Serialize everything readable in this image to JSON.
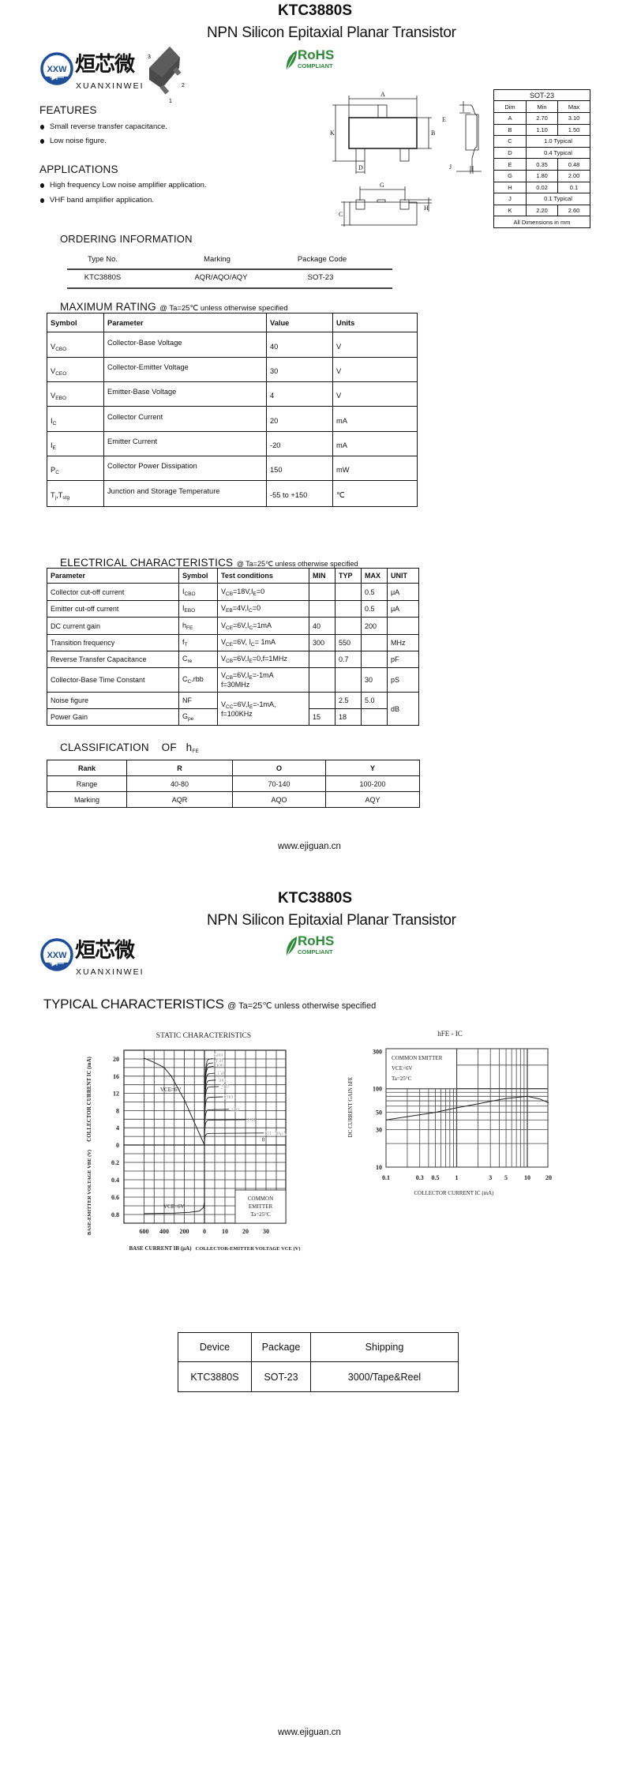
{
  "header": {
    "part": "KTC3880S",
    "subtitle": "NPN Silicon Epitaxial Planar Transistor",
    "rohs": "RoHS",
    "rohs_sub": "COMPLIANT",
    "logo_cn": "烜芯微",
    "logo_en": "XUANXINWEI",
    "logo_mark": "XXW",
    "brand_blue": "#1f4e9a",
    "rohs_green": "#2e8b3a"
  },
  "package_image": {
    "pins": [
      "3",
      "2",
      "1"
    ]
  },
  "features": {
    "title": "FEATURES",
    "items": [
      "Small reverse transfer capacitance.",
      "Low noise figure."
    ]
  },
  "applications": {
    "title": "APPLICATIONS",
    "items": [
      "High frequency Low noise amplifier application.",
      "VHF band amplifier application."
    ]
  },
  "outline": {
    "A": "A",
    "B": "B",
    "C": "C",
    "D": "D",
    "E": "E",
    "G": "G",
    "H": "H",
    "J": "J",
    "K": "K"
  },
  "dims": {
    "title": "SOT-23",
    "headers": [
      "Dim",
      "Min",
      "Max"
    ],
    "rows": [
      [
        "A",
        "2.70",
        "3.10"
      ],
      [
        "B",
        "1.10",
        "1.50"
      ],
      [
        "C",
        "1.0 Typical"
      ],
      [
        "D",
        "0.4 Typical"
      ],
      [
        "E",
        "0.35",
        "0.48"
      ],
      [
        "G",
        "1.80",
        "2.00"
      ],
      [
        "H",
        "0.02",
        "0.1"
      ],
      [
        "J",
        "0.1 Typical"
      ],
      [
        "K",
        "2.20",
        "2.60"
      ]
    ],
    "footer": "All Dimensions in mm"
  },
  "ordering": {
    "title": "ORDERING INFORMATION",
    "headers": [
      "Type No.",
      "Marking",
      "Package Code"
    ],
    "row": [
      "KTC3880S",
      "AQR/AQO/AQY",
      "SOT-23"
    ]
  },
  "max_rating": {
    "title": "MAXIMUM RATING",
    "cond": "@ Ta=25℃ unless otherwise specified",
    "headers": [
      "Symbol",
      "Parameter",
      "Value",
      "Units"
    ],
    "rows": [
      {
        "sym": [
          {
            "t": "V"
          },
          {
            "s": "CBO"
          }
        ],
        "param": "Collector-Base Voltage",
        "value": "40",
        "unit": "V"
      },
      {
        "sym": [
          {
            "t": "V"
          },
          {
            "s": "CEO"
          }
        ],
        "param": "Collector-Emitter Voltage",
        "value": "30",
        "unit": "V"
      },
      {
        "sym": [
          {
            "t": "V"
          },
          {
            "s": "EBO"
          }
        ],
        "param": "Emitter-Base Voltage",
        "value": "4",
        "unit": "V"
      },
      {
        "sym": [
          {
            "t": "I"
          },
          {
            "s": "C"
          }
        ],
        "param": "Collector Current",
        "value": "20",
        "unit": "mA"
      },
      {
        "sym": [
          {
            "t": "I"
          },
          {
            "s": "E"
          }
        ],
        "param": "Emitter Current",
        "value": "-20",
        "unit": "mA"
      },
      {
        "sym": [
          {
            "t": "P"
          },
          {
            "s": "C"
          }
        ],
        "param": "Collector Power Dissipation",
        "value": "150",
        "unit": "mW"
      },
      {
        "sym": [
          {
            "t": "T"
          },
          {
            "s": "j"
          },
          {
            "t": ",T"
          },
          {
            "s": "stg"
          }
        ],
        "param": "Junction and Storage Temperature",
        "value": "-55 to +150",
        "unit": "℃"
      }
    ]
  },
  "electrical": {
    "title": "ELECTRICAL CHARACTERISTICS",
    "cond": "@ Ta=25℃ unless otherwise specified",
    "headers": [
      "Parameter",
      "Symbol",
      "Test conditions",
      "MIN",
      "TYP",
      "MAX",
      "UNIT"
    ],
    "rows": [
      {
        "param": "Collector cut-off current",
        "sym": [
          {
            "t": "I"
          },
          {
            "s": "CBO"
          }
        ],
        "cond": [
          {
            "t": "V"
          },
          {
            "s": "CB"
          },
          {
            "t": "=18V,I"
          },
          {
            "s": "E"
          },
          {
            "t": "=0"
          }
        ],
        "min": "",
        "typ": "",
        "max": "0.5",
        "unit": "μA"
      },
      {
        "param": "Emitter cut-off current",
        "sym": [
          {
            "t": "I"
          },
          {
            "s": "EBO"
          }
        ],
        "cond": [
          {
            "t": "V"
          },
          {
            "s": "EB"
          },
          {
            "t": "=4V,I"
          },
          {
            "s": "C"
          },
          {
            "t": "=0"
          }
        ],
        "min": "",
        "typ": "",
        "max": "0.5",
        "unit": "μA"
      },
      {
        "param": "DC current gain",
        "sym": [
          {
            "t": "h"
          },
          {
            "s": "FE"
          }
        ],
        "cond": [
          {
            "t": "V"
          },
          {
            "s": "CE"
          },
          {
            "t": "=6V,I"
          },
          {
            "s": "C"
          },
          {
            "t": "=1mA"
          }
        ],
        "min": "40",
        "typ": "",
        "max": "200",
        "unit": ""
      },
      {
        "param": "Transition frequency",
        "sym": [
          {
            "t": "f"
          },
          {
            "s": "T"
          }
        ],
        "cond": [
          {
            "t": "V"
          },
          {
            "s": "CE"
          },
          {
            "t": "=6V, I"
          },
          {
            "s": "C"
          },
          {
            "t": "= 1mA"
          }
        ],
        "min": "300",
        "typ": "550",
        "max": "",
        "unit": "MHz"
      },
      {
        "param": "Reverse Transfer Capacitance",
        "sym": [
          {
            "t": "C"
          },
          {
            "s": "re"
          }
        ],
        "cond": [
          {
            "t": "V"
          },
          {
            "s": "CB"
          },
          {
            "t": "=6V,I"
          },
          {
            "s": "E"
          },
          {
            "t": "=0,f=1MHz"
          }
        ],
        "min": "",
        "typ": "0.7",
        "max": "",
        "unit": "pF"
      },
      {
        "param": "Collector-Base Time Constant",
        "sym": [
          {
            "t": "C"
          },
          {
            "s": "C"
          },
          {
            "t": ".rbb"
          }
        ],
        "cond": [
          {
            "t": "V"
          },
          {
            "s": "CB"
          },
          {
            "t": "=6V,I"
          },
          {
            "s": "E"
          },
          {
            "t": "=-1mA"
          },
          {
            "br": true
          },
          {
            "t": "f=30MHz"
          }
        ],
        "min": "",
        "typ": "",
        "max": "30",
        "unit": "pS"
      },
      {
        "param": "Noise figure",
        "sym": [
          {
            "t": "NF"
          }
        ],
        "cond": [
          {
            "t": "V"
          },
          {
            "s": "CC"
          },
          {
            "t": "=6V,I"
          },
          {
            "s": "E"
          },
          {
            "t": "=-1mA,"
          },
          {
            "br": true
          },
          {
            "t": "f=100KHz"
          }
        ],
        "min": "",
        "typ": "2.5",
        "max": "5.0",
        "unit": "dB"
      },
      {
        "param": "Power Gain",
        "sym": [
          {
            "t": "G"
          },
          {
            "s": "pe"
          }
        ],
        "min": "15",
        "typ": "18",
        "max": ""
      }
    ]
  },
  "classification": {
    "title": "CLASSIFICATION    OF",
    "sym": [
      {
        "t": "h"
      },
      {
        "s": "FE"
      }
    ],
    "headers": [
      "Rank",
      "R",
      "O",
      "Y"
    ],
    "rows": [
      [
        "Range",
        "40-80",
        "70-140",
        "100-200"
      ],
      [
        "Marking",
        "AQR",
        "AQO",
        "AQY"
      ]
    ]
  },
  "footer": "www.ejiguan.cn",
  "typical": {
    "title": "TYPICAL CHARACTERISTICS",
    "cond": "@ Ta=25℃ unless otherwise specified"
  },
  "shipping": {
    "headers": [
      "Device",
      "Package",
      "Shipping"
    ],
    "row": [
      "KTC3880S",
      "SOT-23",
      "3000/Tape&Reel"
    ]
  },
  "chart_data": [
    {
      "type": "line",
      "title": "STATIC CHARACTERISTICS",
      "grid": true,
      "upper_right": {
        "xlabel": "COLLECTOR-EMITTER VOLTAGE VCE (V)",
        "ylabel": "COLLECTOR CURRENT IC (mA)",
        "xlim": [
          0,
          40
        ],
        "ylim": [
          0,
          22
        ],
        "xticks": [
          "0",
          "10",
          "20",
          "30"
        ],
        "yticks": [
          "20",
          "16",
          "12",
          "8",
          "4",
          "0"
        ],
        "series": [
          {
            "name": "IB=50μA",
            "label": "IB=50μA",
            "ib": 50,
            "ic": 2.7,
            "vce_end": 29
          },
          {
            "name": "100",
            "label": "100",
            "ib": 100,
            "ic": 5.8,
            "vce_end": 20
          },
          {
            "name": "150",
            "label": "150",
            "ib": 150,
            "ic": 8.2,
            "vce_end": 12
          },
          {
            "name": "200",
            "label": "200",
            "ib": 200,
            "ic": 11.1,
            "vce_end": 9
          },
          {
            "name": "250",
            "label": "250",
            "ib": 250,
            "ic": 13.5,
            "vce_end": 7
          },
          {
            "name": "300",
            "label": "300",
            "ib": 300,
            "ic": 15.0,
            "vce_end": 5.5
          },
          {
            "name": "350",
            "label": "350",
            "ib": 350,
            "ic": 16.6,
            "vce_end": 5
          },
          {
            "name": "400",
            "label": "400",
            "ib": 400,
            "ic": 18.2,
            "vce_end": 4.5
          },
          {
            "name": "450",
            "label": "450",
            "ib": 450,
            "ic": 19.0,
            "vce_end": 4.2
          },
          {
            "name": "500",
            "label": "500",
            "ib": 500,
            "ic": 20.0,
            "vce_end": 4
          }
        ],
        "zero_label": "0"
      },
      "upper_left": {
        "xlabel": "BASE CURRENT IB (μA)",
        "xticks": [
          "600",
          "400",
          "200"
        ],
        "label": "VCE=6V",
        "points": [
          [
            600,
            20.2
          ],
          [
            500,
            19.2
          ],
          [
            400,
            18
          ],
          [
            330,
            16
          ],
          [
            200,
            10.5
          ],
          [
            100,
            5.2
          ],
          [
            0,
            0
          ]
        ]
      },
      "lower_left": {
        "ylabel": "BASE-EMITTER VOLTAGE VBE (V)",
        "yticks": [
          "0.2",
          "0.4",
          "0.6",
          "0.8"
        ],
        "ylim": [
          0,
          0.9
        ],
        "label": "VCE=6V",
        "points": [
          [
            600,
            0.79
          ],
          [
            300,
            0.785
          ],
          [
            150,
            0.775
          ],
          [
            50,
            0.76
          ],
          [
            10,
            0.72
          ],
          [
            0,
            0.66
          ]
        ]
      },
      "annotation": [
        "COMMON",
        "EMITTER",
        "Ta=25°C"
      ]
    },
    {
      "type": "line",
      "title": "hFE - IC",
      "xlabel": "COLLECTOR CURRENT IC (mA)",
      "ylabel": "DC CURRENT GAIN hFE",
      "xscale": "log",
      "yscale": "log",
      "xlim": [
        0.1,
        20
      ],
      "ylim": [
        10,
        300
      ],
      "xticks": [
        0.1,
        0.3,
        0.5,
        1,
        3,
        5,
        10,
        20
      ],
      "yticks": [
        10,
        30,
        50,
        100,
        300
      ],
      "grid": true,
      "annotation": [
        "COMMON EMITTER",
        "VCE=6V",
        "Ta=25°C"
      ],
      "x": [
        0.1,
        0.2,
        0.5,
        1,
        2,
        3,
        5,
        10,
        15,
        20
      ],
      "y": [
        40,
        44,
        50,
        57,
        64,
        69,
        75,
        80,
        74,
        66
      ]
    }
  ]
}
